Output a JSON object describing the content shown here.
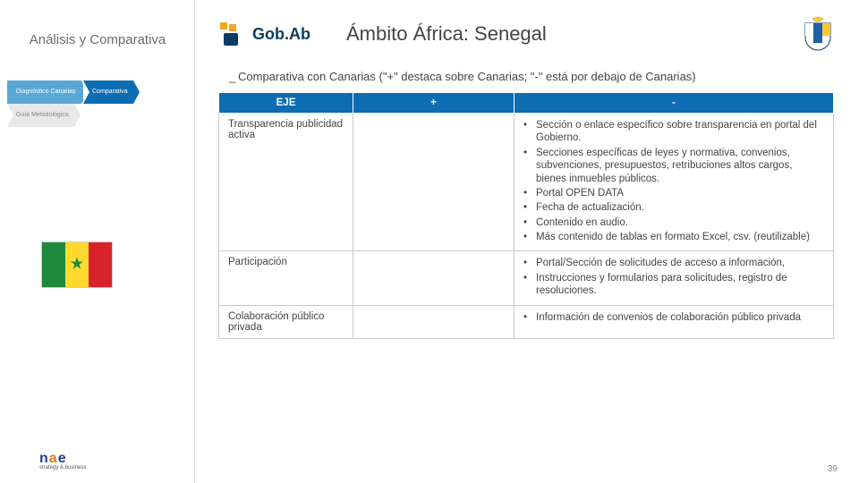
{
  "sidebar": {
    "title": "Análisis y Comparativa",
    "chevrons": [
      "Diagnóstico Canarias",
      "Comparativa",
      "Guía Metodológica"
    ]
  },
  "flag": {
    "country": "Senegal"
  },
  "footer_logo": {
    "line1_n": "n",
    "line1_a": "a",
    "line1_e": "e",
    "line2": "strategy & business"
  },
  "brand": {
    "text": "Gob.Ab"
  },
  "page_title": "Ámbito África: Senegal",
  "subtitle": "Comparativa con Canarias (\"+\" destaca sobre Canarias; \"-\" está por debajo de Canarias)",
  "table": {
    "headers": {
      "eje": "EJE",
      "plus": "+",
      "minus": "-"
    },
    "rows": [
      {
        "axis": "Transparencia publicidad activa",
        "plus": [],
        "minus": [
          "Sección o enlace específico sobre transparencia en portal del Gobierno.",
          "Secciones específicas de leyes y normativa, convenios, subvenciones, presupuestos, retribuciones altos cargos, bienes inmuebles públicos.",
          "Portal OPEN DATA",
          "Fecha de actualización.",
          "Contenido en audio.",
          "Más contenido de tablas en formato Excel, csv. (reutilizable)"
        ]
      },
      {
        "axis": "Participación",
        "plus": [],
        "minus": [
          "Portal/Sección de solicitudes de acceso a información,",
          "Instrucciones y formularios para solicitudes, registro de resoluciones."
        ]
      },
      {
        "axis": "Colaboración público privada",
        "plus": [],
        "minus": [
          "Información de convenios de colaboración público privada"
        ]
      }
    ]
  },
  "page_number": "39",
  "colors": {
    "header_bg": "#0d6db3",
    "chev_light": "#5aa7d6",
    "chev_dark": "#0d6db3",
    "chev_gray": "#e8e8e8"
  }
}
